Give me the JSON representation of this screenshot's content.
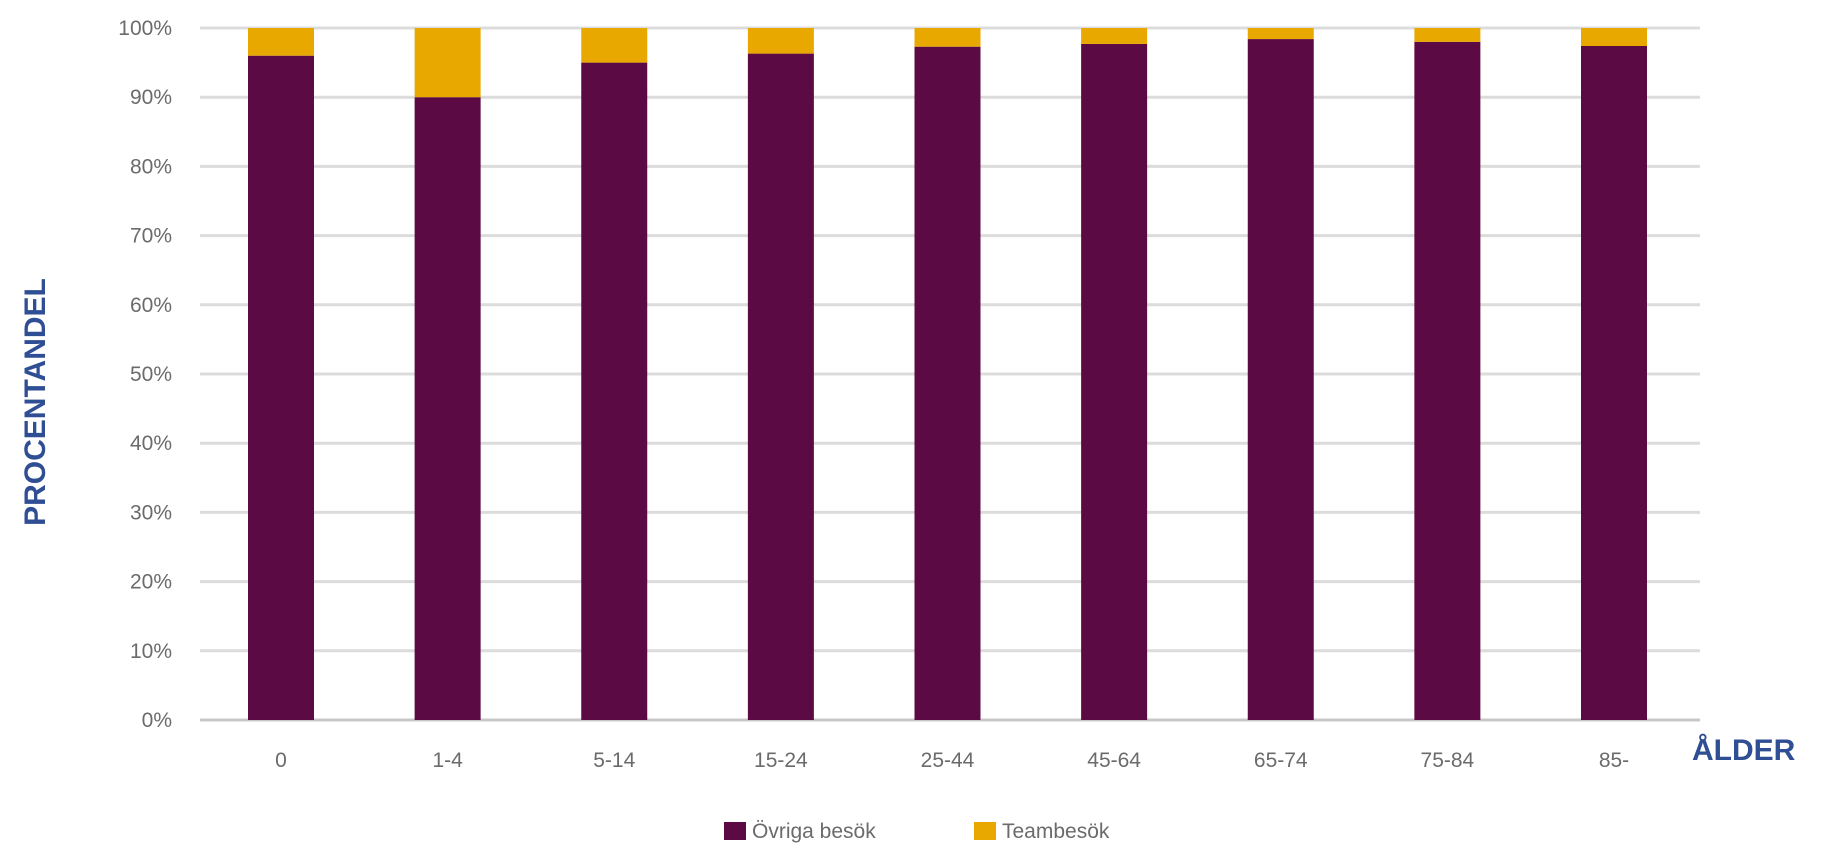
{
  "chart_data": {
    "type": "bar",
    "stacked": true,
    "categories": [
      "0",
      "1-4",
      "5-14",
      "15-24",
      "25-44",
      "45-64",
      "65-74",
      "75-84",
      "85-"
    ],
    "series": [
      {
        "name": "Övriga besök",
        "values": [
          96,
          90,
          95,
          96.3,
          97.3,
          97.7,
          98.4,
          98,
          97.4
        ],
        "color": "#5c0a44"
      },
      {
        "name": "Teambesök",
        "values": [
          4,
          10,
          5,
          3.7,
          2.7,
          2.3,
          1.6,
          2,
          2.6
        ],
        "color": "#e8a800"
      }
    ],
    "xlabel": "ÅLDER",
    "ylabel": "PROCENTANDEL",
    "ylim": [
      0,
      100
    ],
    "yticks": [
      "0%",
      "10%",
      "20%",
      "30%",
      "40%",
      "50%",
      "60%",
      "70%",
      "80%",
      "90%",
      "100%"
    ],
    "grid": true,
    "legend_position": "bottom"
  }
}
